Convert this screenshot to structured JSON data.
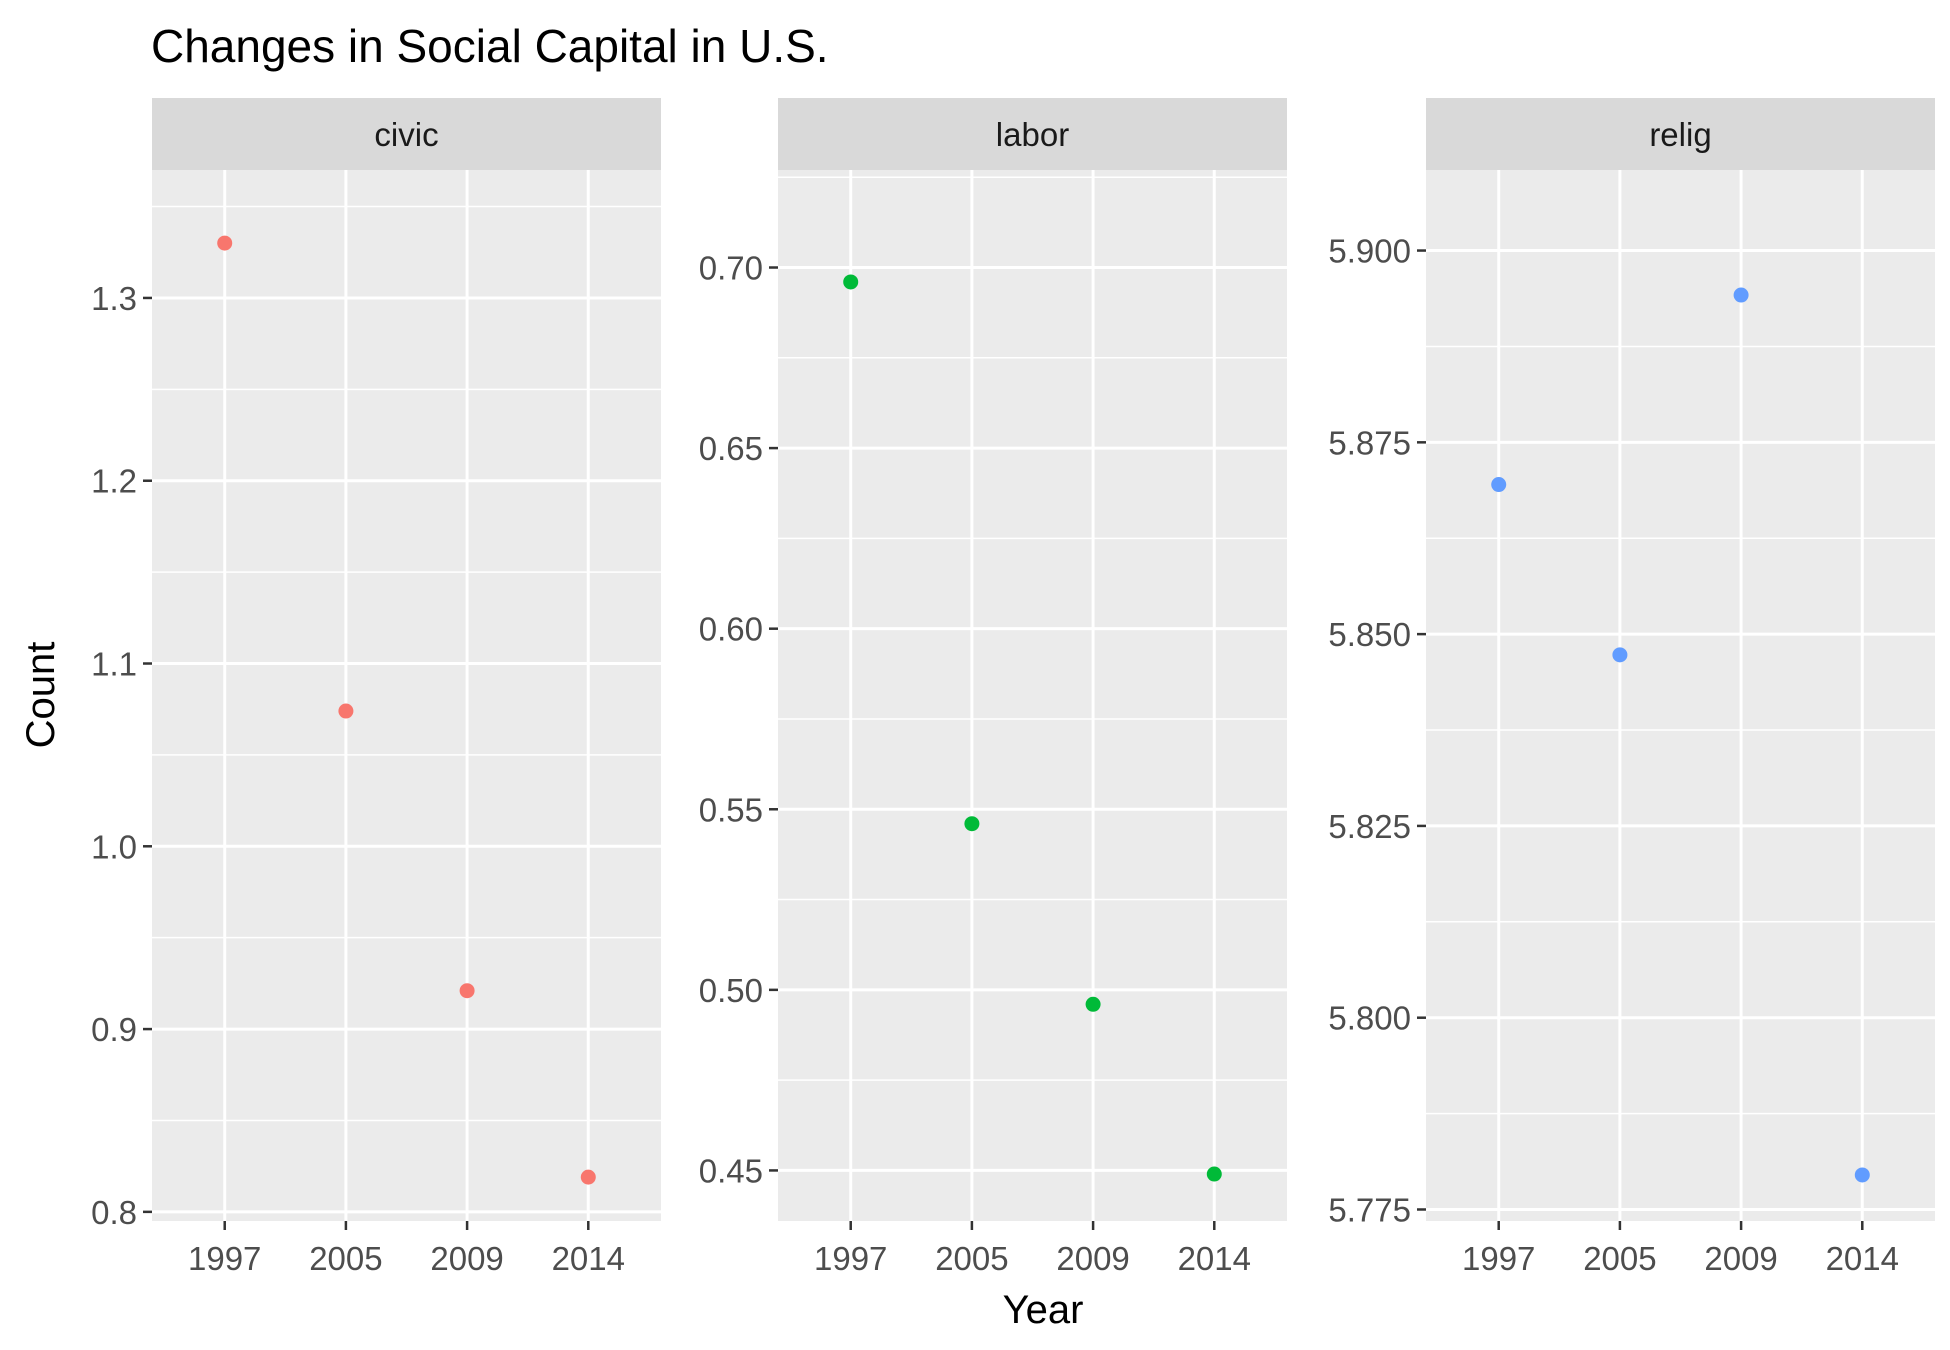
{
  "chart_data": {
    "type": "scatter",
    "title": "Changes in Social Capital in U.S.",
    "xlabel": "Year",
    "ylabel": "Count",
    "x_categories": [
      "1997",
      "2005",
      "2009",
      "2014"
    ],
    "facet_scales": "free_y",
    "grid": true,
    "legend": "none",
    "panels": [
      {
        "name": "civic",
        "color": "#F8766D",
        "ylim": [
          0.795,
          1.37
        ],
        "yticks": [
          "0.8",
          "0.9",
          "1.0",
          "1.1",
          "1.2",
          "1.3"
        ],
        "values": [
          1.33,
          1.074,
          0.921,
          0.819
        ]
      },
      {
        "name": "labor",
        "color": "#00BA38",
        "ylim": [
          0.436,
          0.727
        ],
        "yticks": [
          "0.45",
          "0.50",
          "0.55",
          "0.60",
          "0.65",
          "0.70"
        ],
        "values": [
          0.696,
          0.546,
          0.496,
          0.449
        ]
      },
      {
        "name": "relig",
        "color": "#619CFF",
        "ylim": [
          5.7735,
          5.9105
        ],
        "yticks": [
          "5.775",
          "5.800",
          "5.825",
          "5.850",
          "5.875",
          "5.900"
        ],
        "values": [
          5.8695,
          5.8473,
          5.8942,
          5.7795
        ]
      }
    ]
  }
}
